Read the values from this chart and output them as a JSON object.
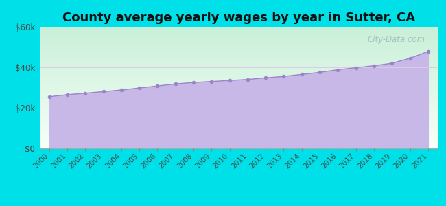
{
  "title": "County average yearly wages by year in Sutter, CA",
  "years": [
    2000,
    2001,
    2002,
    2003,
    2004,
    2005,
    2006,
    2007,
    2008,
    2009,
    2010,
    2011,
    2012,
    2013,
    2014,
    2015,
    2016,
    2017,
    2018,
    2019,
    2020,
    2021
  ],
  "values": [
    25500,
    26500,
    27200,
    28000,
    28800,
    29800,
    30800,
    31800,
    32500,
    33000,
    33500,
    34000,
    34800,
    35500,
    36500,
    37500,
    38800,
    39800,
    40800,
    42000,
    44500,
    47800
  ],
  "ylim": [
    0,
    60000
  ],
  "yticks": [
    0,
    20000,
    40000,
    60000
  ],
  "ytick_labels": [
    "$0",
    "$20k",
    "$40k",
    "$60k"
  ],
  "fill_color": "#c8b8e8",
  "line_color": "#9b85c9",
  "marker_color": "#9b85c9",
  "bg_grad_top": "#c8f0d8",
  "bg_grad_bottom": "#e8f8f0",
  "bg_color_outer": "#00e0e8",
  "watermark": "City-Data.com",
  "title_fontsize": 13,
  "title_fontweight": "bold",
  "grid_color": "#e0c8e8"
}
